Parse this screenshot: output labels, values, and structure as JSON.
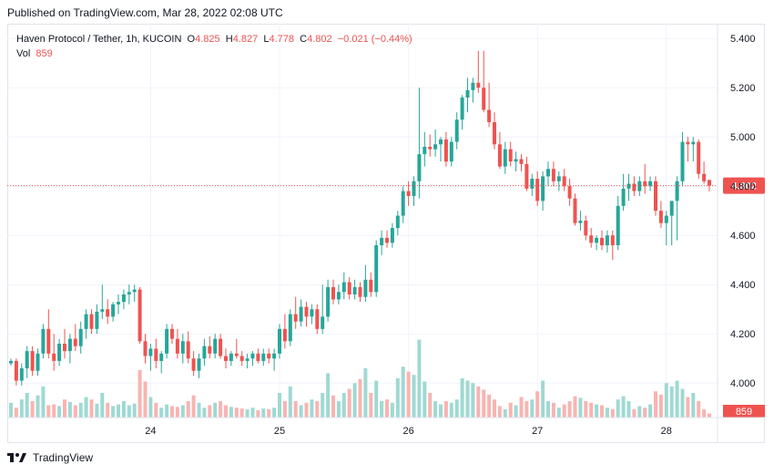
{
  "header": {
    "published": "Published on TradingView.com, Mar 28, 2022 02:08 UTC"
  },
  "legend": {
    "symbol": "Haven Protocol / Tether, 1h, KUCOIN",
    "open_label": "O",
    "open": "4.825",
    "high_label": "H",
    "high": "4.827",
    "low_label": "L",
    "low": "4.778",
    "close_label": "C",
    "close": "4.802",
    "change": "−0.021 (−0.44%)",
    "vol_label": "Vol",
    "vol": "859"
  },
  "footer": {
    "brand": "TradingView"
  },
  "colors": {
    "up": "#26a69a",
    "down": "#ef5350",
    "vol_up": "#9fd9d3",
    "vol_down": "#f8b4b2",
    "grid": "#f0f3fa",
    "text": "#131722"
  },
  "chart_data": {
    "type": "candlestick",
    "title": "Haven Protocol / Tether, 1h, KUCOIN",
    "y_ticks": [
      "5.400",
      "5.200",
      "5.000",
      "4.800",
      "4.600",
      "4.400",
      "4.200",
      "4.000"
    ],
    "ylim": [
      3.86,
      5.46
    ],
    "x_ticks": [
      {
        "label": "24",
        "bar": 26
      },
      {
        "label": "25",
        "bar": 50
      },
      {
        "label": "26",
        "bar": 74
      },
      {
        "label": "27",
        "bar": 98
      },
      {
        "label": "28",
        "bar": 122
      }
    ],
    "last_price": "4.802",
    "last_volume": "859",
    "candles": [
      [
        4.08,
        4.1,
        4.07,
        4.09
      ],
      [
        4.09,
        4.1,
        3.99,
        4.01
      ],
      [
        4.01,
        4.08,
        3.99,
        4.06
      ],
      [
        4.06,
        4.15,
        4.02,
        4.13
      ],
      [
        4.13,
        4.15,
        4.03,
        4.05
      ],
      [
        4.05,
        4.14,
        4.03,
        4.12
      ],
      [
        4.12,
        4.24,
        4.1,
        4.22
      ],
      [
        4.22,
        4.3,
        4.1,
        4.12
      ],
      [
        4.12,
        4.2,
        4.05,
        4.09
      ],
      [
        4.09,
        4.18,
        4.07,
        4.16
      ],
      [
        4.16,
        4.22,
        4.1,
        4.13
      ],
      [
        4.13,
        4.2,
        4.08,
        4.18
      ],
      [
        4.18,
        4.24,
        4.13,
        4.15
      ],
      [
        4.15,
        4.25,
        4.12,
        4.22
      ],
      [
        4.22,
        4.3,
        4.18,
        4.28
      ],
      [
        4.28,
        4.3,
        4.2,
        4.22
      ],
      [
        4.22,
        4.32,
        4.2,
        4.29
      ],
      [
        4.29,
        4.4,
        4.26,
        4.3
      ],
      [
        4.3,
        4.34,
        4.24,
        4.27
      ],
      [
        4.27,
        4.33,
        4.25,
        4.32
      ],
      [
        4.32,
        4.36,
        4.28,
        4.33
      ],
      [
        4.33,
        4.38,
        4.3,
        4.36
      ],
      [
        4.36,
        4.4,
        4.32,
        4.37
      ],
      [
        4.37,
        4.4,
        4.33,
        4.38
      ],
      [
        4.38,
        4.39,
        4.16,
        4.17
      ],
      [
        4.17,
        4.2,
        4.08,
        4.11
      ],
      [
        4.11,
        4.16,
        4.05,
        4.14
      ],
      [
        4.14,
        4.18,
        4.06,
        4.09
      ],
      [
        4.09,
        4.13,
        4.04,
        4.12
      ],
      [
        4.12,
        4.24,
        4.1,
        4.22
      ],
      [
        4.22,
        4.24,
        4.16,
        4.18
      ],
      [
        4.18,
        4.22,
        4.1,
        4.12
      ],
      [
        4.12,
        4.2,
        4.08,
        4.17
      ],
      [
        4.17,
        4.21,
        4.08,
        4.1
      ],
      [
        4.1,
        4.13,
        4.03,
        4.05
      ],
      [
        4.05,
        4.12,
        4.02,
        4.1
      ],
      [
        4.1,
        4.18,
        4.07,
        4.15
      ],
      [
        4.15,
        4.19,
        4.1,
        4.12
      ],
      [
        4.12,
        4.2,
        4.1,
        4.18
      ],
      [
        4.18,
        4.2,
        4.1,
        4.11
      ],
      [
        4.11,
        4.14,
        4.06,
        4.09
      ],
      [
        4.09,
        4.13,
        4.07,
        4.12
      ],
      [
        4.12,
        4.18,
        4.1,
        4.11
      ],
      [
        4.11,
        4.13,
        4.07,
        4.09
      ],
      [
        4.09,
        4.12,
        4.06,
        4.1
      ],
      [
        4.1,
        4.13,
        4.07,
        4.12
      ],
      [
        4.12,
        4.14,
        4.08,
        4.09
      ],
      [
        4.09,
        4.14,
        4.07,
        4.12
      ],
      [
        4.12,
        4.14,
        4.08,
        4.1
      ],
      [
        4.1,
        4.14,
        4.05,
        4.12
      ],
      [
        4.12,
        4.24,
        4.1,
        4.22
      ],
      [
        4.22,
        4.28,
        4.14,
        4.17
      ],
      [
        4.17,
        4.3,
        4.15,
        4.28
      ],
      [
        4.28,
        4.35,
        4.22,
        4.25
      ],
      [
        4.25,
        4.34,
        4.23,
        4.31
      ],
      [
        4.31,
        4.33,
        4.23,
        4.27
      ],
      [
        4.27,
        4.32,
        4.24,
        4.3
      ],
      [
        4.3,
        4.32,
        4.2,
        4.22
      ],
      [
        4.22,
        4.4,
        4.2,
        4.27
      ],
      [
        4.27,
        4.42,
        4.25,
        4.39
      ],
      [
        4.39,
        4.42,
        4.32,
        4.34
      ],
      [
        4.34,
        4.4,
        4.32,
        4.37
      ],
      [
        4.37,
        4.45,
        4.34,
        4.41
      ],
      [
        4.41,
        4.43,
        4.34,
        4.36
      ],
      [
        4.36,
        4.42,
        4.34,
        4.39
      ],
      [
        4.39,
        4.41,
        4.33,
        4.35
      ],
      [
        4.35,
        4.48,
        4.33,
        4.42
      ],
      [
        4.42,
        4.45,
        4.35,
        4.37
      ],
      [
        4.37,
        4.58,
        4.35,
        4.56
      ],
      [
        4.56,
        4.62,
        4.52,
        4.59
      ],
      [
        4.59,
        4.62,
        4.55,
        4.57
      ],
      [
        4.57,
        4.65,
        4.55,
        4.63
      ],
      [
        4.63,
        4.7,
        4.6,
        4.68
      ],
      [
        4.68,
        4.8,
        4.65,
        4.78
      ],
      [
        4.78,
        4.82,
        4.72,
        4.76
      ],
      [
        4.76,
        4.84,
        4.72,
        4.82
      ],
      [
        4.82,
        5.2,
        4.75,
        4.93
      ],
      [
        4.93,
        5.02,
        4.88,
        4.96
      ],
      [
        4.96,
        5.01,
        4.92,
        4.95
      ],
      [
        4.95,
        5.03,
        4.92,
        4.97
      ],
      [
        4.97,
        5.0,
        4.9,
        4.99
      ],
      [
        4.99,
        5.02,
        4.88,
        4.9
      ],
      [
        4.9,
        5.0,
        4.88,
        4.98
      ],
      [
        4.98,
        5.1,
        4.95,
        5.07
      ],
      [
        5.07,
        5.17,
        5.03,
        5.16
      ],
      [
        5.16,
        5.24,
        5.1,
        5.19
      ],
      [
        5.19,
        5.24,
        5.14,
        5.22
      ],
      [
        5.22,
        5.35,
        5.18,
        5.2
      ],
      [
        5.2,
        5.35,
        5.1,
        5.11
      ],
      [
        5.11,
        5.22,
        5.04,
        5.06
      ],
      [
        5.06,
        5.1,
        4.95,
        4.97
      ],
      [
        4.97,
        5.02,
        4.87,
        4.88
      ],
      [
        4.88,
        4.98,
        4.85,
        4.95
      ],
      [
        4.95,
        4.98,
        4.88,
        4.9
      ],
      [
        4.9,
        4.94,
        4.86,
        4.91
      ],
      [
        4.91,
        4.93,
        4.86,
        4.89
      ],
      [
        4.89,
        4.92,
        4.78,
        4.79
      ],
      [
        4.79,
        4.85,
        4.76,
        4.83
      ],
      [
        4.83,
        4.86,
        4.72,
        4.74
      ],
      [
        4.74,
        4.86,
        4.7,
        4.84
      ],
      [
        4.84,
        4.9,
        4.8,
        4.87
      ],
      [
        4.87,
        4.9,
        4.8,
        4.82
      ],
      [
        4.82,
        4.86,
        4.78,
        4.84
      ],
      [
        4.84,
        4.87,
        4.78,
        4.8
      ],
      [
        4.8,
        4.83,
        4.72,
        4.75
      ],
      [
        4.75,
        4.77,
        4.64,
        4.65
      ],
      [
        4.65,
        4.7,
        4.62,
        4.66
      ],
      [
        4.66,
        4.68,
        4.58,
        4.6
      ],
      [
        4.6,
        4.63,
        4.55,
        4.57
      ],
      [
        4.57,
        4.6,
        4.54,
        4.59
      ],
      [
        4.59,
        4.62,
        4.54,
        4.56
      ],
      [
        4.56,
        4.62,
        4.53,
        4.6
      ],
      [
        4.6,
        4.62,
        4.5,
        4.56
      ],
      [
        4.56,
        4.76,
        4.54,
        4.72
      ],
      [
        4.72,
        4.85,
        4.7,
        4.79
      ],
      [
        4.79,
        4.85,
        4.74,
        4.81
      ],
      [
        4.81,
        4.84,
        4.76,
        4.78
      ],
      [
        4.78,
        4.84,
        4.76,
        4.82
      ],
      [
        4.82,
        4.89,
        4.77,
        4.8
      ],
      [
        4.8,
        4.84,
        4.78,
        4.82
      ],
      [
        4.82,
        4.84,
        4.68,
        4.7
      ],
      [
        4.7,
        4.74,
        4.63,
        4.65
      ],
      [
        4.65,
        4.7,
        4.56,
        4.68
      ],
      [
        4.68,
        4.74,
        4.56,
        4.74
      ],
      [
        4.74,
        4.84,
        4.58,
        4.82
      ],
      [
        4.82,
        5.02,
        4.8,
        4.98
      ],
      [
        4.98,
        5.0,
        4.9,
        4.97
      ],
      [
        4.97,
        5.0,
        4.9,
        4.98
      ],
      [
        4.98,
        4.99,
        4.83,
        4.85
      ],
      [
        4.85,
        4.9,
        4.81,
        4.82
      ],
      [
        4.825,
        4.827,
        4.778,
        4.802
      ]
    ],
    "volume_max": 1.0,
    "volumes": [
      0.18,
      0.12,
      0.22,
      0.3,
      0.2,
      0.27,
      0.38,
      0.15,
      0.16,
      0.14,
      0.22,
      0.19,
      0.15,
      0.18,
      0.25,
      0.22,
      0.17,
      0.3,
      0.18,
      0.14,
      0.16,
      0.2,
      0.15,
      0.17,
      0.58,
      0.44,
      0.25,
      0.18,
      0.12,
      0.16,
      0.14,
      0.13,
      0.15,
      0.2,
      0.27,
      0.18,
      0.12,
      0.15,
      0.18,
      0.2,
      0.15,
      0.13,
      0.12,
      0.11,
      0.1,
      0.12,
      0.09,
      0.11,
      0.1,
      0.12,
      0.3,
      0.2,
      0.38,
      0.2,
      0.15,
      0.18,
      0.22,
      0.2,
      0.3,
      0.54,
      0.27,
      0.2,
      0.3,
      0.35,
      0.42,
      0.47,
      0.6,
      0.3,
      0.45,
      0.2,
      0.22,
      0.18,
      0.48,
      0.62,
      0.56,
      0.52,
      0.95,
      0.44,
      0.3,
      0.2,
      0.16,
      0.2,
      0.18,
      0.22,
      0.48,
      0.45,
      0.42,
      0.38,
      0.34,
      0.28,
      0.22,
      0.14,
      0.1,
      0.18,
      0.15,
      0.25,
      0.2,
      0.22,
      0.32,
      0.45,
      0.2,
      0.18,
      0.12,
      0.16,
      0.2,
      0.26,
      0.24,
      0.2,
      0.18,
      0.16,
      0.15,
      0.12,
      0.1,
      0.22,
      0.26,
      0.2,
      0.1,
      0.14,
      0.12,
      0.16,
      0.32,
      0.28,
      0.42,
      0.38,
      0.45,
      0.35,
      0.25,
      0.3,
      0.2,
      0.1,
      0.05
    ]
  }
}
